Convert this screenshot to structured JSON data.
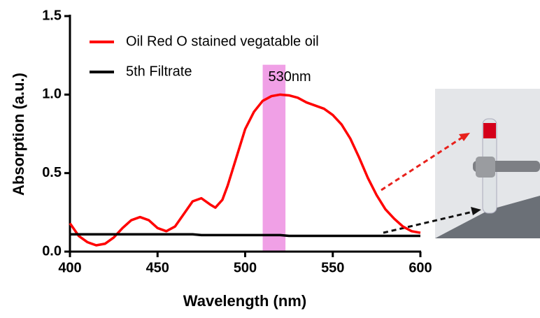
{
  "chart_data": {
    "type": "line",
    "xlabel": "Wavelength (nm)",
    "ylabel": "Absorption (a.u.)",
    "x": [
      400,
      405,
      410,
      415,
      420,
      425,
      430,
      435,
      440,
      445,
      450,
      455,
      460,
      465,
      470,
      475,
      480,
      483,
      487,
      490,
      495,
      500,
      505,
      510,
      515,
      520,
      525,
      530,
      535,
      540,
      545,
      550,
      555,
      560,
      565,
      570,
      575,
      580,
      585,
      590,
      595,
      600
    ],
    "series": [
      {
        "name": "Oil Red O stained vegatable oil",
        "color": "#ff0000",
        "values": [
          0.18,
          0.1,
          0.06,
          0.04,
          0.05,
          0.09,
          0.15,
          0.2,
          0.22,
          0.2,
          0.15,
          0.13,
          0.16,
          0.24,
          0.32,
          0.34,
          0.3,
          0.28,
          0.33,
          0.42,
          0.6,
          0.78,
          0.89,
          0.96,
          0.99,
          1.0,
          0.995,
          0.98,
          0.95,
          0.93,
          0.91,
          0.87,
          0.81,
          0.72,
          0.6,
          0.47,
          0.36,
          0.27,
          0.21,
          0.16,
          0.13,
          0.12
        ]
      },
      {
        "name": "5th Filtrate",
        "color": "#000000",
        "values": [
          0.11,
          0.11,
          0.11,
          0.11,
          0.11,
          0.11,
          0.11,
          0.11,
          0.11,
          0.11,
          0.11,
          0.11,
          0.11,
          0.11,
          0.11,
          0.105,
          0.105,
          0.105,
          0.105,
          0.105,
          0.105,
          0.105,
          0.105,
          0.105,
          0.105,
          0.105,
          0.1,
          0.1,
          0.1,
          0.1,
          0.1,
          0.1,
          0.1,
          0.1,
          0.1,
          0.1,
          0.1,
          0.1,
          0.1,
          0.1,
          0.1,
          0.1
        ]
      }
    ],
    "band": {
      "x": [
        510,
        523
      ],
      "top": 1.19,
      "color": "#f0a0e6",
      "label": "530nm"
    },
    "xlim": [
      400,
      600
    ],
    "xticks": [
      400,
      450,
      500,
      550,
      600
    ],
    "ylim": [
      0,
      1.5
    ],
    "yticks": [
      {
        "value": 0,
        "label": "0.0"
      },
      0.5,
      {
        "value": 1,
        "label": "1.0"
      },
      1.5
    ]
  }
}
